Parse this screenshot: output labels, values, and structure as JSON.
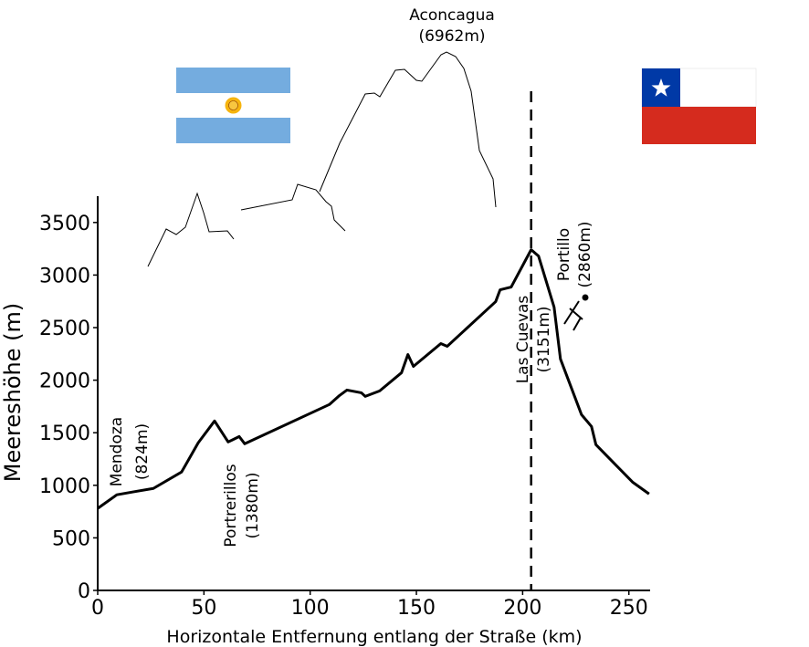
{
  "chart_data": {
    "type": "line",
    "x_label": "Horizontale Entfernung entlang der Straße (km)",
    "y_label": "Meereshöhe (m)",
    "xlim": [
      0,
      260
    ],
    "ylim": [
      0,
      3750
    ],
    "xticks": [
      0,
      50,
      100,
      150,
      200,
      250
    ],
    "yticks": [
      0,
      500,
      1000,
      1500,
      2000,
      2500,
      3000,
      3500
    ],
    "color": "#000000",
    "x": [
      0,
      9,
      16.3,
      26.2,
      39.5,
      47.3,
      55,
      61.4,
      66.6,
      69.2,
      109,
      113.8,
      117.3,
      124.1,
      125.9,
      132.7,
      143,
      146,
      148.6,
      161.5,
      164.5,
      187.3,
      189.4,
      194.6,
      204,
      207.5,
      214.8,
      217.8,
      227.7,
      232.4,
      234.5,
      251.7,
      259.5
    ],
    "values": [
      780,
      910,
      936,
      970,
      1127,
      1404,
      1612,
      1412,
      1464,
      1395,
      1768,
      1854,
      1906,
      1880,
      1846,
      1898,
      2071,
      2244,
      2131,
      2348,
      2322,
      2747,
      2860,
      2886,
      3241,
      3180,
      2695,
      2201,
      1672,
      1560,
      1386,
      1031,
      918
    ],
    "reference_x": 204,
    "annotations": [
      [
        "Aconcagua",
        "(6962m)"
      ],
      [
        "Mendoza",
        "(824m)"
      ],
      [
        "Portrerillos",
        "(1380m)"
      ],
      [
        "Las Cuevas",
        "(3151m)"
      ],
      [
        "Portillo",
        "(2860m)"
      ]
    ]
  }
}
